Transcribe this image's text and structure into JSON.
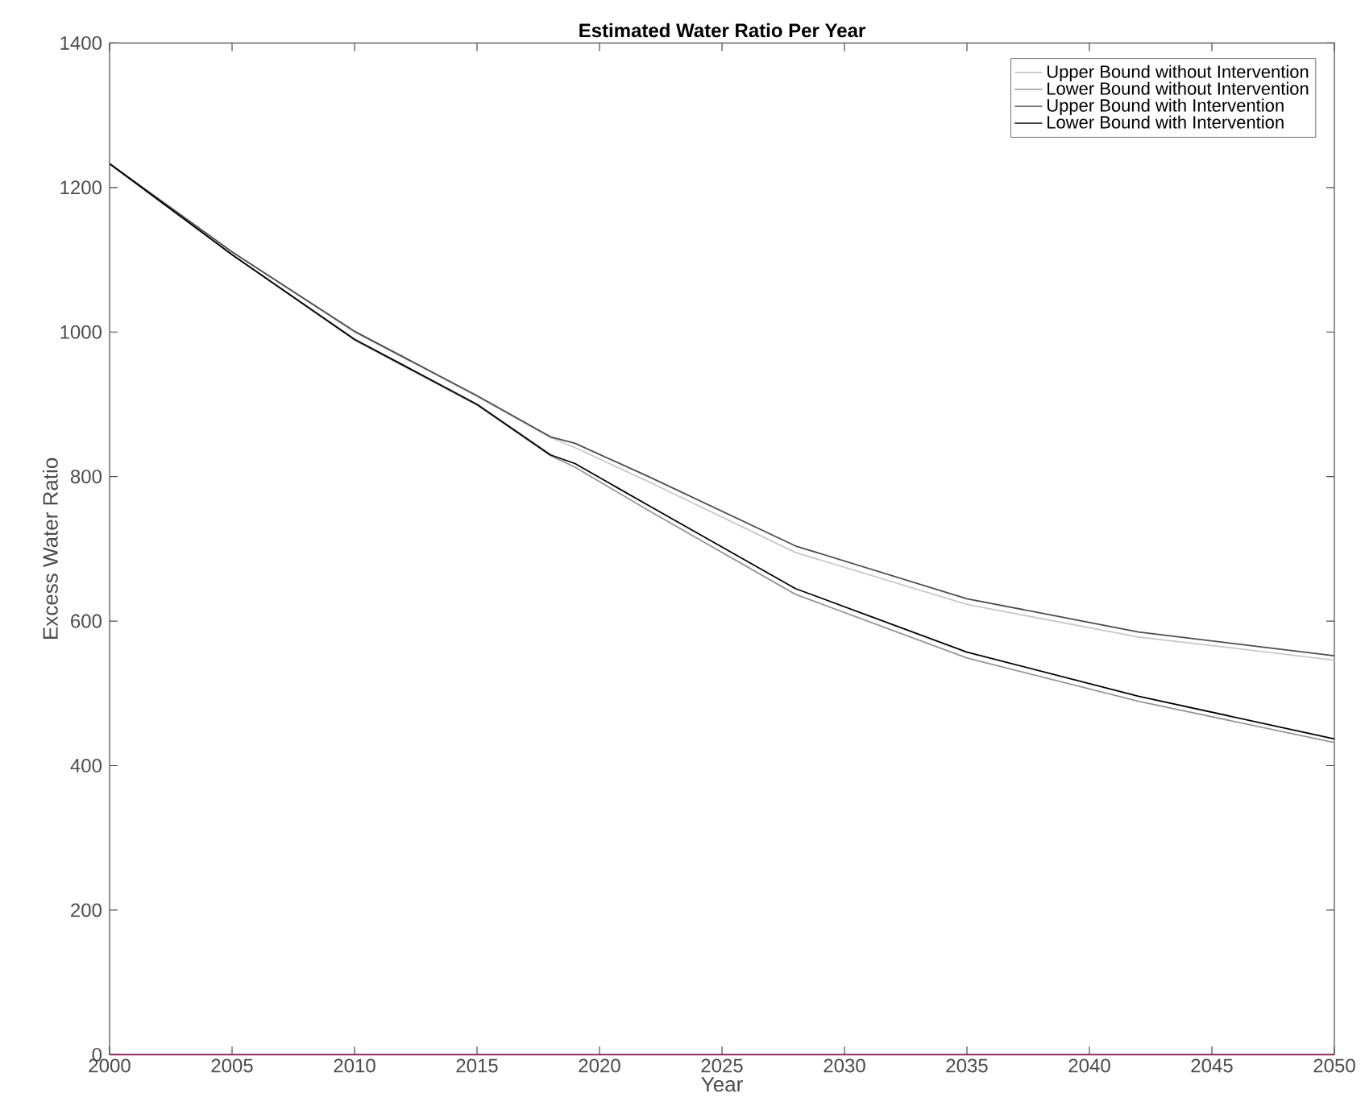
{
  "chart_data": {
    "type": "line",
    "title": "Estimated Water Ratio Per Year",
    "xlabel": "Year",
    "ylabel": "Excess Water Ratio",
    "x": [
      2000,
      2005,
      2010,
      2015,
      2018,
      2019,
      2022,
      2028,
      2035,
      2042,
      2050
    ],
    "series": [
      {
        "name": "Upper Bound without Intervention",
        "color": "#c8c8c8",
        "values": [
          1233,
          1111,
          1000,
          911,
          854,
          840,
          793,
          695,
          623,
          578,
          546
        ]
      },
      {
        "name": "Lower Bound without Intervention",
        "color": "#969696",
        "values": [
          1233,
          1107,
          989,
          899,
          829,
          813,
          753,
          637,
          549,
          489,
          432
        ]
      },
      {
        "name": "Upper Bound with Intervention",
        "color": "#4d4d4d",
        "values": [
          1233,
          1111,
          1001,
          912,
          855,
          846,
          800,
          704,
          631,
          585,
          552
        ]
      },
      {
        "name": "Lower Bound with Intervention",
        "color": "#000000",
        "values": [
          1233,
          1107,
          990,
          900,
          830,
          818,
          760,
          645,
          557,
          496,
          437
        ]
      },
      {
        "color": "#8b2257",
        "x": [
          2000,
          2050
        ],
        "values": [
          0,
          0
        ]
      }
    ],
    "xlim": [
      2000,
      2050
    ],
    "xticks": [
      2000,
      2005,
      2010,
      2015,
      2020,
      2025,
      2030,
      2035,
      2040,
      2045,
      2050
    ],
    "ylim": [
      0,
      1400
    ],
    "yticks": [
      0,
      200,
      400,
      600,
      800,
      1000,
      1200,
      1400
    ],
    "grid": false,
    "legend": "top right",
    "marker": "none",
    "line_style": "solid"
  }
}
